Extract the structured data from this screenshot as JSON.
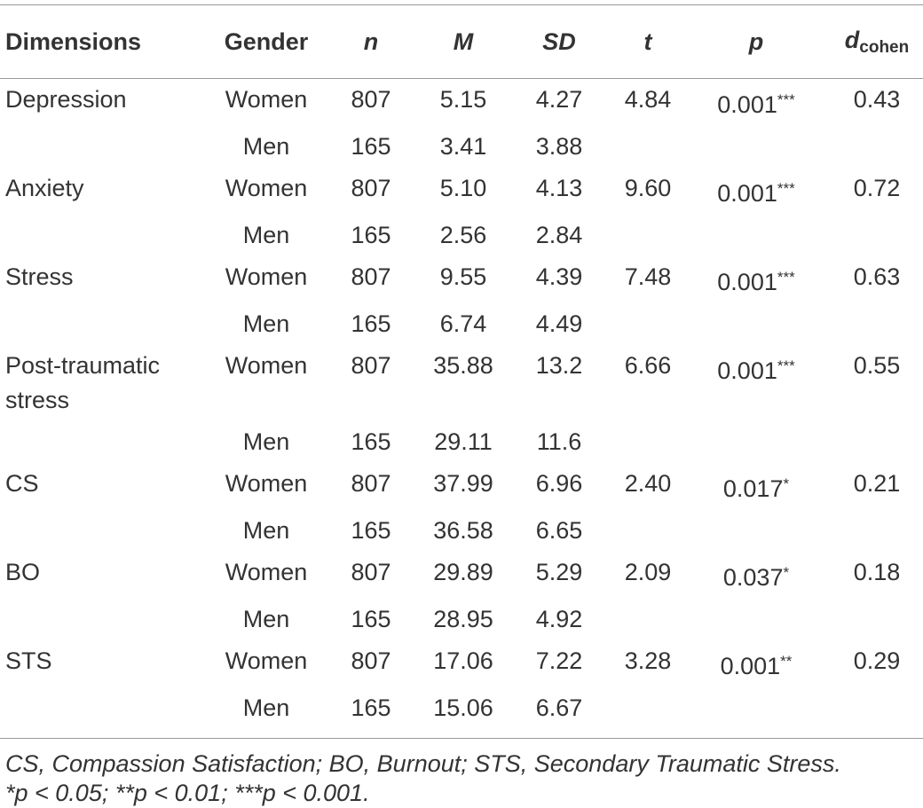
{
  "table": {
    "header": {
      "dimensions": "Dimensions",
      "gender": "Gender",
      "n": "n",
      "M": "M",
      "SD": "SD",
      "t": "t",
      "p": "p",
      "d": "d",
      "d_sub": "cohen"
    },
    "groups": [
      {
        "dimension": "Depression",
        "t": "4.84",
        "p": "0.001",
        "sig": "***",
        "d": "0.43",
        "women": {
          "gender": "Women",
          "n": "807",
          "M": "5.15",
          "SD": "4.27"
        },
        "men": {
          "gender": "Men",
          "n": "165",
          "M": "3.41",
          "SD": "3.88"
        }
      },
      {
        "dimension": "Anxiety",
        "t": "9.60",
        "p": "0.001",
        "sig": "***",
        "d": "0.72",
        "women": {
          "gender": "Women",
          "n": "807",
          "M": "5.10",
          "SD": "4.13"
        },
        "men": {
          "gender": "Men",
          "n": "165",
          "M": "2.56",
          "SD": "2.84"
        }
      },
      {
        "dimension": "Stress",
        "t": "7.48",
        "p": "0.001",
        "sig": "***",
        "d": "0.63",
        "women": {
          "gender": "Women",
          "n": "807",
          "M": "9.55",
          "SD": "4.39"
        },
        "men": {
          "gender": "Men",
          "n": "165",
          "M": "6.74",
          "SD": "4.49"
        }
      },
      {
        "dimension": "Post-traumatic stress",
        "t": "6.66",
        "p": "0.001",
        "sig": "***",
        "d": "0.55",
        "women": {
          "gender": "Women",
          "n": "807",
          "M": "35.88",
          "SD": "13.2"
        },
        "men": {
          "gender": "Men",
          "n": "165",
          "M": "29.11",
          "SD": "11.6"
        }
      },
      {
        "dimension": "CS",
        "t": "2.40",
        "p": "0.017",
        "sig": "*",
        "d": "0.21",
        "women": {
          "gender": "Women",
          "n": "807",
          "M": "37.99",
          "SD": "6.96"
        },
        "men": {
          "gender": "Men",
          "n": "165",
          "M": "36.58",
          "SD": "6.65"
        }
      },
      {
        "dimension": "BO",
        "t": "2.09",
        "p": "0.037",
        "sig": "*",
        "d": "0.18",
        "women": {
          "gender": "Women",
          "n": "807",
          "M": "29.89",
          "SD": "5.29"
        },
        "men": {
          "gender": "Men",
          "n": "165",
          "M": "28.95",
          "SD": "4.92"
        }
      },
      {
        "dimension": "STS",
        "t": "3.28",
        "p": "0.001",
        "sig": "**",
        "d": "0.29",
        "women": {
          "gender": "Women",
          "n": "807",
          "M": "17.06",
          "SD": "7.22"
        },
        "men": {
          "gender": "Men",
          "n": "165",
          "M": "15.06",
          "SD": "6.67"
        }
      }
    ],
    "notes": [
      "CS, Compassion Satisfaction; BO, Burnout; STS, Secondary Traumatic Stress.",
      "*p < 0.05; **p < 0.01; ***p < 0.001."
    ]
  }
}
